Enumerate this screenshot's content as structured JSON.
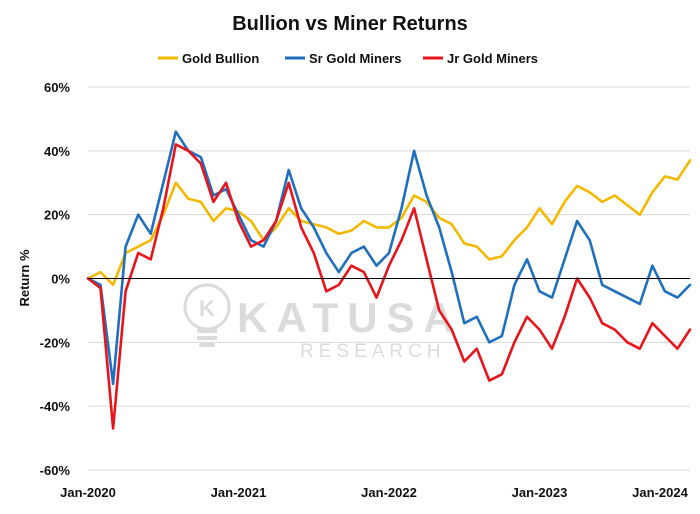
{
  "chart_data": {
    "type": "line",
    "title": "Bullion vs Miner Returns",
    "ylabel": "Return %",
    "xlabel": "",
    "ylim": [
      -60,
      60
    ],
    "y_ticks": [
      60,
      40,
      20,
      0,
      -20,
      -40,
      -60
    ],
    "y_tick_labels": [
      "60%",
      "40%",
      "20%",
      "0%",
      "-20%",
      "-40%",
      "-60%"
    ],
    "x_range": [
      "2020-01",
      "2024-01"
    ],
    "x_ticks": [
      "2020-01",
      "2021-01",
      "2022-01",
      "2023-01",
      "2024-01"
    ],
    "x_tick_labels": [
      "Jan-2020",
      "Jan-2021",
      "Jan-2022",
      "Jan-2023",
      "Jan-2024"
    ],
    "grid": "horizontal-major",
    "legend_position": "top-center",
    "series": [
      {
        "name": "Gold Bullion",
        "color": "#F5B800",
        "points": [
          [
            "2020-01",
            0
          ],
          [
            "2020-02",
            2
          ],
          [
            "2020-03",
            -2
          ],
          [
            "2020-04",
            8
          ],
          [
            "2020-05",
            10
          ],
          [
            "2020-06",
            12
          ],
          [
            "2020-07",
            20
          ],
          [
            "2020-08",
            30
          ],
          [
            "2020-09",
            25
          ],
          [
            "2020-10",
            24
          ],
          [
            "2020-11",
            18
          ],
          [
            "2020-12",
            22
          ],
          [
            "2021-01",
            21
          ],
          [
            "2021-02",
            18
          ],
          [
            "2021-03",
            12
          ],
          [
            "2021-04",
            16
          ],
          [
            "2021-05",
            22
          ],
          [
            "2021-06",
            18
          ],
          [
            "2021-07",
            17
          ],
          [
            "2021-08",
            16
          ],
          [
            "2021-09",
            14
          ],
          [
            "2021-10",
            15
          ],
          [
            "2021-11",
            18
          ],
          [
            "2021-12",
            16
          ],
          [
            "2022-01",
            16
          ],
          [
            "2022-02",
            19
          ],
          [
            "2022-03",
            26
          ],
          [
            "2022-04",
            24
          ],
          [
            "2022-05",
            19
          ],
          [
            "2022-06",
            17
          ],
          [
            "2022-07",
            11
          ],
          [
            "2022-08",
            10
          ],
          [
            "2022-09",
            6
          ],
          [
            "2022-10",
            7
          ],
          [
            "2022-11",
            12
          ],
          [
            "2022-12",
            16
          ],
          [
            "2023-01",
            22
          ],
          [
            "2023-02",
            17
          ],
          [
            "2023-03",
            24
          ],
          [
            "2023-04",
            29
          ],
          [
            "2023-05",
            27
          ],
          [
            "2023-06",
            24
          ],
          [
            "2023-07",
            26
          ],
          [
            "2023-08",
            23
          ],
          [
            "2023-09",
            20
          ],
          [
            "2023-10",
            27
          ],
          [
            "2023-11",
            32
          ],
          [
            "2023-12",
            31
          ],
          [
            "2024-01",
            37
          ]
        ]
      },
      {
        "name": "Sr Gold Miners",
        "color": "#1F6FBF",
        "points": [
          [
            "2020-01",
            0
          ],
          [
            "2020-02",
            -2
          ],
          [
            "2020-03",
            -33
          ],
          [
            "2020-04",
            10
          ],
          [
            "2020-05",
            20
          ],
          [
            "2020-06",
            14
          ],
          [
            "2020-07",
            30
          ],
          [
            "2020-08",
            46
          ],
          [
            "2020-09",
            40
          ],
          [
            "2020-10",
            38
          ],
          [
            "2020-11",
            26
          ],
          [
            "2020-12",
            28
          ],
          [
            "2021-01",
            20
          ],
          [
            "2021-02",
            12
          ],
          [
            "2021-03",
            10
          ],
          [
            "2021-04",
            18
          ],
          [
            "2021-05",
            34
          ],
          [
            "2021-06",
            22
          ],
          [
            "2021-07",
            16
          ],
          [
            "2021-08",
            8
          ],
          [
            "2021-09",
            2
          ],
          [
            "2021-10",
            8
          ],
          [
            "2021-11",
            10
          ],
          [
            "2021-12",
            4
          ],
          [
            "2022-01",
            8
          ],
          [
            "2022-02",
            22
          ],
          [
            "2022-03",
            40
          ],
          [
            "2022-04",
            26
          ],
          [
            "2022-05",
            16
          ],
          [
            "2022-06",
            2
          ],
          [
            "2022-07",
            -14
          ],
          [
            "2022-08",
            -12
          ],
          [
            "2022-09",
            -20
          ],
          [
            "2022-10",
            -18
          ],
          [
            "2022-11",
            -2
          ],
          [
            "2022-12",
            6
          ],
          [
            "2023-01",
            -4
          ],
          [
            "2023-02",
            -6
          ],
          [
            "2023-03",
            6
          ],
          [
            "2023-04",
            18
          ],
          [
            "2023-05",
            12
          ],
          [
            "2023-06",
            -2
          ],
          [
            "2023-07",
            -4
          ],
          [
            "2023-08",
            -6
          ],
          [
            "2023-09",
            -8
          ],
          [
            "2023-10",
            4
          ],
          [
            "2023-11",
            -4
          ],
          [
            "2023-12",
            -6
          ],
          [
            "2024-01",
            -2
          ]
        ]
      },
      {
        "name": "Jr Gold Miners",
        "color": "#E8141C",
        "points": [
          [
            "2020-01",
            0
          ],
          [
            "2020-02",
            -3
          ],
          [
            "2020-03",
            -47
          ],
          [
            "2020-04",
            -4
          ],
          [
            "2020-05",
            8
          ],
          [
            "2020-06",
            6
          ],
          [
            "2020-07",
            22
          ],
          [
            "2020-08",
            42
          ],
          [
            "2020-09",
            40
          ],
          [
            "2020-10",
            36
          ],
          [
            "2020-11",
            24
          ],
          [
            "2020-12",
            30
          ],
          [
            "2021-01",
            18
          ],
          [
            "2021-02",
            10
          ],
          [
            "2021-03",
            12
          ],
          [
            "2021-04",
            18
          ],
          [
            "2021-05",
            30
          ],
          [
            "2021-06",
            16
          ],
          [
            "2021-07",
            8
          ],
          [
            "2021-08",
            -4
          ],
          [
            "2021-09",
            -2
          ],
          [
            "2021-10",
            4
          ],
          [
            "2021-11",
            2
          ],
          [
            "2021-12",
            -6
          ],
          [
            "2022-01",
            4
          ],
          [
            "2022-02",
            12
          ],
          [
            "2022-03",
            22
          ],
          [
            "2022-04",
            6
          ],
          [
            "2022-05",
            -10
          ],
          [
            "2022-06",
            -16
          ],
          [
            "2022-07",
            -26
          ],
          [
            "2022-08",
            -22
          ],
          [
            "2022-09",
            -32
          ],
          [
            "2022-10",
            -30
          ],
          [
            "2022-11",
            -20
          ],
          [
            "2022-12",
            -12
          ],
          [
            "2023-01",
            -16
          ],
          [
            "2023-02",
            -22
          ],
          [
            "2023-03",
            -12
          ],
          [
            "2023-04",
            0
          ],
          [
            "2023-05",
            -6
          ],
          [
            "2023-06",
            -14
          ],
          [
            "2023-07",
            -16
          ],
          [
            "2023-08",
            -20
          ],
          [
            "2023-09",
            -22
          ],
          [
            "2023-10",
            -14
          ],
          [
            "2023-11",
            -18
          ],
          [
            "2023-12",
            -22
          ],
          [
            "2024-01",
            -16
          ]
        ]
      }
    ]
  },
  "watermark": {
    "brand": "KATUSA",
    "sub": "RESEARCH",
    "emblem_letter": "K"
  }
}
